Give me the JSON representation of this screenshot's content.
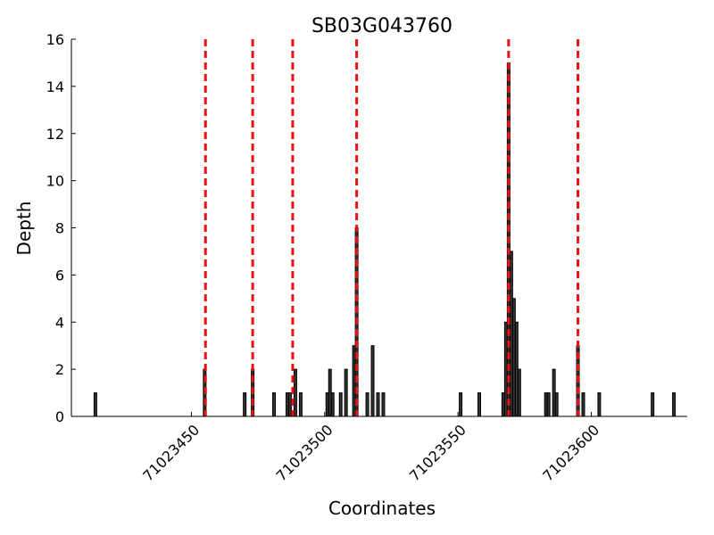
{
  "chart_data": {
    "type": "bar",
    "title": "SB03G043760",
    "x_label": "Coordinates",
    "y_label": "Depth",
    "x": [
      71023414,
      71023455,
      71023470,
      71023473,
      71023481,
      71023486,
      71023487,
      71023489,
      71023491,
      71023501,
      71023502,
      71023503,
      71023506,
      71023508,
      71023511,
      71023512,
      71023516,
      71023518,
      71023520,
      71023522,
      71023551,
      71023558,
      71023567,
      71023568,
      71023569,
      71023570,
      71023571,
      71023572,
      71023573,
      71023583,
      71023584,
      71023586,
      71023587,
      71023595,
      71023597,
      71023603,
      71023623,
      71023631
    ],
    "values": [
      1,
      2,
      1,
      2,
      1,
      1,
      1,
      2,
      1,
      1,
      2,
      1,
      1,
      2,
      3,
      8,
      1,
      3,
      1,
      1,
      1,
      1,
      1,
      4,
      15,
      7,
      5,
      4,
      2,
      1,
      1,
      2,
      1,
      3,
      1,
      1,
      1,
      1
    ],
    "color": "#333333",
    "vlines": [
      71023455.3,
      71023473,
      71023488,
      71023512,
      71023569,
      71023595
    ],
    "vline_color": "#ee1111",
    "xlim": [
      71023405,
      71023636
    ],
    "xticks": [
      71023450,
      71023500,
      71023550,
      71023600
    ],
    "ylim": [
      0,
      16
    ],
    "yticks": [
      0,
      2,
      4,
      6,
      8,
      10,
      12,
      14,
      16
    ]
  }
}
